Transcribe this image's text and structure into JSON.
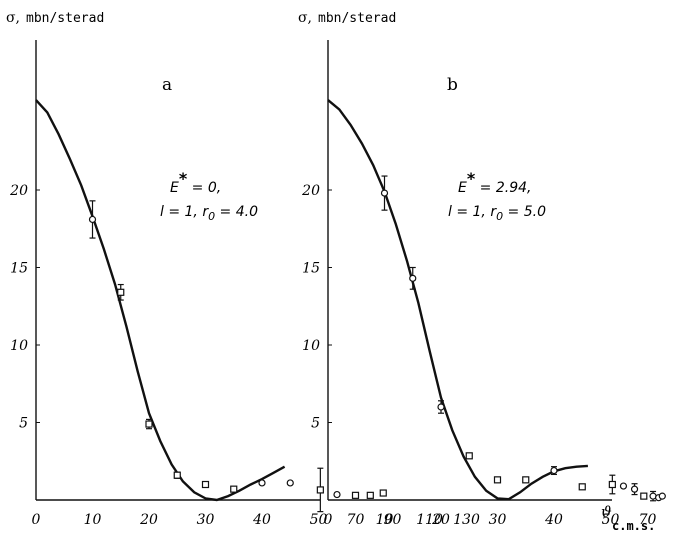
{
  "figure": {
    "ylabel_symbol": "σ,",
    "ylabel_unit": "mbn/sterad",
    "xlabel_symbol": "ϑ",
    "xlabel_sub": "c.m.s."
  },
  "chart_data": [
    {
      "type": "scatter",
      "panel": "a",
      "ylabel": "σ, mbn/sterad",
      "xlabel": "ϑ c.m.s.",
      "x_tick_labels": [
        "0",
        "10",
        "20",
        "30",
        "40",
        "50",
        "70",
        "90",
        "110",
        "130"
      ],
      "y_tick_labels": [
        "5",
        "10",
        "15",
        "20"
      ],
      "xlim": [
        0,
        130
      ],
      "ylim": [
        0,
        26
      ],
      "annotation": {
        "line1_main": "E",
        "line1_sup": "*",
        "line1_rest": " = 0,",
        "line2": "l = 1, r",
        "line2_sub": "0",
        "line2_rest": " = 4.0"
      },
      "points": [
        {
          "x": 10,
          "y": 18.1,
          "err": 1.2,
          "marker": "circle"
        },
        {
          "x": 15,
          "y": 13.4,
          "err": 0.5,
          "marker": "square"
        },
        {
          "x": 20,
          "y": 4.9,
          "err": 0.3,
          "marker": "square"
        },
        {
          "x": 25,
          "y": 1.6,
          "err": 0.2,
          "marker": "square"
        },
        {
          "x": 30,
          "y": 1.0,
          "err": 0,
          "marker": "square"
        },
        {
          "x": 35,
          "y": 0.7,
          "err": 0,
          "marker": "square"
        },
        {
          "x": 40,
          "y": 1.1,
          "err": 0,
          "marker": "circle"
        },
        {
          "x": 45,
          "y": 1.1,
          "err": 0,
          "marker": "circle"
        },
        {
          "x": 51,
          "y": 0.65,
          "err": 1.4,
          "marker": "square"
        },
        {
          "x": 60,
          "y": 0.35,
          "err": 0,
          "marker": "circle"
        },
        {
          "x": 70,
          "y": 0.3,
          "err": 0,
          "marker": "square"
        },
        {
          "x": 78,
          "y": 0.3,
          "err": 0,
          "marker": "square"
        },
        {
          "x": 85,
          "y": 0.45,
          "err": 0,
          "marker": "square"
        }
      ],
      "curve": [
        [
          0,
          25.8
        ],
        [
          2,
          25.0
        ],
        [
          4,
          23.6
        ],
        [
          6,
          22.0
        ],
        [
          8,
          20.3
        ],
        [
          10,
          18.3
        ],
        [
          12,
          16.2
        ],
        [
          14,
          13.9
        ],
        [
          16,
          11.2
        ],
        [
          18,
          8.3
        ],
        [
          20,
          5.6
        ],
        [
          22,
          3.8
        ],
        [
          24,
          2.3
        ],
        [
          26,
          1.2
        ],
        [
          28,
          0.5
        ],
        [
          30,
          0.1
        ],
        [
          32,
          0.0
        ],
        [
          34,
          0.25
        ],
        [
          36,
          0.6
        ],
        [
          38,
          1.0
        ],
        [
          40,
          1.35
        ],
        [
          42,
          1.75
        ],
        [
          44,
          2.15
        ]
      ]
    },
    {
      "type": "scatter",
      "panel": "b",
      "ylabel": "σ, mbn/sterad",
      "xlabel": "ϑ c.m.s.",
      "x_tick_labels": [
        "0",
        "10",
        "20",
        "30",
        "40",
        "50",
        "70",
        "90",
        "110",
        "130"
      ],
      "y_tick_labels": [
        "5",
        "10",
        "15",
        "20"
      ],
      "xlim": [
        0,
        130
      ],
      "ylim": [
        0,
        26
      ],
      "annotation": {
        "line1_main": "E",
        "line1_sup": "*",
        "line1_rest": " = 2.94,",
        "line2": "l = 1, r",
        "line2_sub": "0",
        "line2_rest": " = 5.0"
      },
      "points": [
        {
          "x": 10,
          "y": 19.8,
          "err": 1.1,
          "marker": "circle"
        },
        {
          "x": 15,
          "y": 14.3,
          "err": 0.7,
          "marker": "circle"
        },
        {
          "x": 20,
          "y": 6.0,
          "err": 0.4,
          "marker": "circle"
        },
        {
          "x": 25,
          "y": 2.85,
          "err": 0,
          "marker": "square"
        },
        {
          "x": 30,
          "y": 1.3,
          "err": 0,
          "marker": "square"
        },
        {
          "x": 35,
          "y": 1.3,
          "err": 0,
          "marker": "square"
        },
        {
          "x": 40,
          "y": 1.9,
          "err": 0.25,
          "marker": "circle"
        },
        {
          "x": 45,
          "y": 0.85,
          "err": 0,
          "marker": "square"
        },
        {
          "x": 51,
          "y": 1.0,
          "err": 0.6,
          "marker": "square"
        },
        {
          "x": 57,
          "y": 0.9,
          "err": 0,
          "marker": "circle"
        },
        {
          "x": 63,
          "y": 0.7,
          "err": 0.35,
          "marker": "circle"
        },
        {
          "x": 68,
          "y": 0.25,
          "err": 0,
          "marker": "square"
        },
        {
          "x": 73,
          "y": 0.25,
          "err": 0.3,
          "marker": "circle"
        },
        {
          "x": 76,
          "y": 0.15,
          "err": 0,
          "marker": "circle"
        },
        {
          "x": 78,
          "y": 0.25,
          "err": 0,
          "marker": "circle"
        }
      ],
      "curve": [
        [
          0,
          25.8
        ],
        [
          2,
          25.2
        ],
        [
          4,
          24.2
        ],
        [
          6,
          23.0
        ],
        [
          8,
          21.6
        ],
        [
          10,
          19.9
        ],
        [
          12,
          17.8
        ],
        [
          14,
          15.4
        ],
        [
          16,
          12.7
        ],
        [
          18,
          9.6
        ],
        [
          20,
          6.6
        ],
        [
          22,
          4.5
        ],
        [
          24,
          2.8
        ],
        [
          26,
          1.5
        ],
        [
          28,
          0.6
        ],
        [
          30,
          0.1
        ],
        [
          32,
          0.05
        ],
        [
          34,
          0.5
        ],
        [
          36,
          1.05
        ],
        [
          38,
          1.5
        ],
        [
          40,
          1.85
        ],
        [
          42,
          2.05
        ],
        [
          44,
          2.15
        ],
        [
          46,
          2.2
        ]
      ]
    }
  ]
}
